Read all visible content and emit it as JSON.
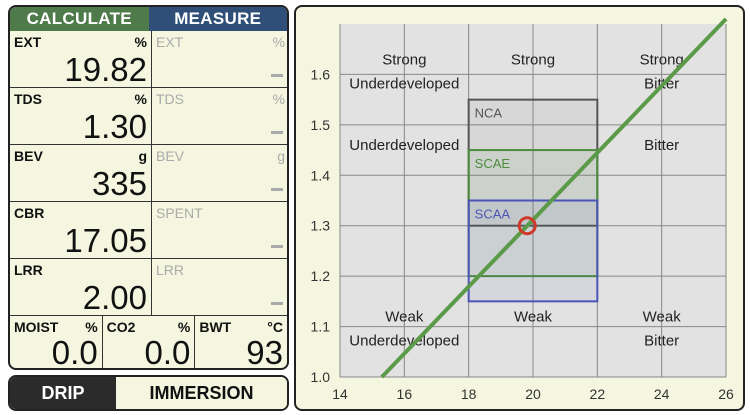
{
  "tabs": {
    "calculate": "CALCULATE",
    "measure": "MEASURE"
  },
  "calc_rows": [
    {
      "label": "EXT",
      "unit": "%",
      "value": "19.82"
    },
    {
      "label": "TDS",
      "unit": "%",
      "value": "1.30"
    },
    {
      "label": "BEV",
      "unit": "g",
      "value": "335"
    },
    {
      "label": "CBR",
      "unit": "",
      "value": "17.05"
    },
    {
      "label": "LRR",
      "unit": "",
      "value": "2.00"
    }
  ],
  "measure_rows": [
    {
      "label": "EXT",
      "unit": "%"
    },
    {
      "label": "TDS",
      "unit": "%"
    },
    {
      "label": "BEV",
      "unit": "g"
    },
    {
      "label": "SPENT",
      "unit": ""
    },
    {
      "label": "LRR",
      "unit": ""
    }
  ],
  "bottom_row": [
    {
      "label": "MOIST",
      "unit": "%",
      "value": "0.0"
    },
    {
      "label": "CO2",
      "unit": "%",
      "value": "0.0"
    },
    {
      "label": "BWT",
      "unit": "°C",
      "value": "93"
    }
  ],
  "mode_toggle": {
    "drip": "DRIP",
    "immersion": "IMMERSION"
  },
  "chart_data": {
    "type": "scatter",
    "xlim": [
      14,
      26
    ],
    "ylim": [
      1.0,
      1.7
    ],
    "x_ticks": [
      14,
      16,
      18,
      20,
      22,
      24,
      26
    ],
    "y_ticks": [
      "1.0",
      "1.1",
      "1.2",
      "1.3",
      "1.4",
      "1.5",
      "1.6"
    ],
    "grid": true,
    "target_boxes": [
      {
        "name": "NCA",
        "x": [
          18,
          22
        ],
        "y": [
          1.3,
          1.55
        ],
        "color": "#555555"
      },
      {
        "name": "SCAE",
        "x": [
          18,
          22
        ],
        "y": [
          1.2,
          1.45
        ],
        "color": "#4c8a3c"
      },
      {
        "name": "SCAA",
        "x": [
          18,
          22
        ],
        "y": [
          1.15,
          1.35
        ],
        "color": "#4a55b5"
      }
    ],
    "zone_labels": [
      {
        "lines": [
          "Strong",
          "Underdeveloped"
        ],
        "x": 16,
        "y": 1.62
      },
      {
        "lines": [
          "Strong"
        ],
        "x": 20,
        "y": 1.62
      },
      {
        "lines": [
          "Strong",
          "Bitter"
        ],
        "x": 24,
        "y": 1.62
      },
      {
        "lines": [
          "Underdeveloped"
        ],
        "x": 16,
        "y": 1.45
      },
      {
        "lines": [
          "Bitter"
        ],
        "x": 24,
        "y": 1.45
      },
      {
        "lines": [
          "Weak",
          "Underdeveloped"
        ],
        "x": 16,
        "y": 1.11
      },
      {
        "lines": [
          "Weak"
        ],
        "x": 20,
        "y": 1.11
      },
      {
        "lines": [
          "Weak",
          "Bitter"
        ],
        "x": 24,
        "y": 1.11
      }
    ],
    "ratio_line": {
      "points": [
        [
          15.3,
          1.0
        ],
        [
          26,
          1.71
        ]
      ],
      "color": "#5a9a48"
    },
    "current_point": {
      "x": 19.82,
      "y": 1.3,
      "color": "#d03a2a"
    }
  }
}
